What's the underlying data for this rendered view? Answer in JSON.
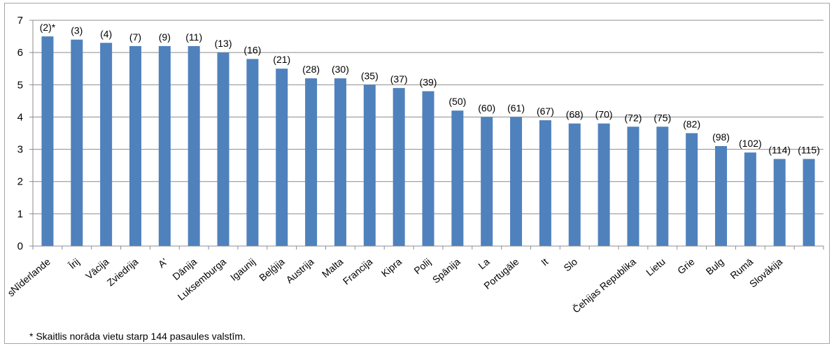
{
  "chart_data": {
    "type": "bar",
    "categories": [
      "Nīderlande",
      "Īrija",
      "Vācija",
      "Zviedrija",
      "Austrija",
      "Dānija",
      "Luksemburga",
      "Igaunija",
      "Beļģija",
      "Austrija",
      "Malta",
      "Francija",
      "Kipra",
      "Polija",
      "Spānija",
      "Latvija",
      "Portugāle",
      "Itālija",
      "Slovēnija",
      "Slovākija",
      "Čehijas Republika",
      "Lietuva",
      "Grieķija",
      "Bulgārija",
      "Rumānija",
      "Slovākija",
      "Slovākija"
    ],
    "category_labels": [
      "Nīderlande",
      "Īrij",
      "Vācija",
      "Zviedrija",
      "A'",
      "Dānija",
      "Luksemburga",
      "Igaunij",
      "Beļģija",
      "Austrija",
      "Malta",
      "Francija",
      "Kipra",
      "Polij",
      "Spānija",
      "La",
      "Portugāle",
      "It",
      "Slo",
      "",
      "Čehijas Republika",
      "Lietu",
      "Grie",
      "Bulg",
      "Rumā",
      "Slovākija",
      ""
    ],
    "values": [
      6.5,
      6.4,
      6.3,
      6.2,
      6.2,
      6.2,
      6.0,
      5.8,
      5.5,
      5.2,
      5.2,
      5.0,
      4.9,
      4.8,
      4.2,
      4.0,
      4.0,
      3.9,
      3.8,
      3.8,
      3.7,
      3.7,
      3.5,
      3.1,
      2.9,
      2.7,
      2.7
    ],
    "data_labels": [
      "(2)*",
      "(3)",
      "(4)",
      "(7)",
      "(9)",
      "(11)",
      "(13)",
      "(16)",
      "(21)",
      "(28)",
      "(30)",
      "(35)",
      "(37)",
      "(39)",
      "(50)",
      "(60)",
      "(61)",
      "(67)",
      "(68)",
      "(70)",
      "(72)",
      "(75)",
      "(82)",
      "(98)",
      "(102)",
      "(114)",
      "(115)"
    ],
    "ylim": [
      0,
      7
    ],
    "yticks": [
      "0",
      "1",
      "2",
      "3",
      "4",
      "5",
      "6",
      "7"
    ],
    "grid": true,
    "bar_color": "#4f81bd",
    "grid_color": "#8c8c8c",
    "axis_stub": "s",
    "footnote": "* Skaitlis norāda vietu starp 144 pasaules valstīm."
  }
}
